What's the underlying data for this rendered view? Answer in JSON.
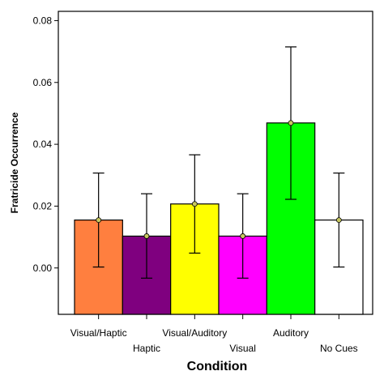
{
  "chart_data": {
    "type": "bar",
    "title": "",
    "xlabel": "Condition",
    "ylabel": "Fratricide Occurrence",
    "ylim": [
      -0.015,
      0.083
    ],
    "yticks": [
      0.0,
      0.02,
      0.04,
      0.06,
      0.08
    ],
    "ytick_labels": [
      "0.00",
      "0.02",
      "0.04",
      "0.06",
      "0.08"
    ],
    "grid": false,
    "categories": [
      "Visual/Haptic",
      "Haptic",
      "Visual/Auditory",
      "Visual",
      "Auditory",
      "No Cues"
    ],
    "values": [
      0.0155,
      0.0103,
      0.0207,
      0.0103,
      0.0469,
      0.0155
    ],
    "error_low": [
      0.0003,
      -0.0033,
      0.0048,
      -0.0033,
      0.0222,
      0.0003
    ],
    "error_high": [
      0.0307,
      0.024,
      0.0366,
      0.024,
      0.0715,
      0.0307
    ],
    "bar_colors": [
      "#ff7f3f",
      "#7f007f",
      "#ffff00",
      "#ff00ff",
      "#00ff00",
      "#ffffff"
    ],
    "label_rows": [
      0,
      1,
      0,
      1,
      0,
      1
    ]
  }
}
